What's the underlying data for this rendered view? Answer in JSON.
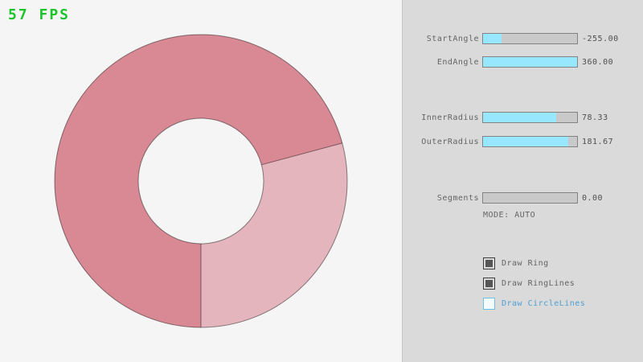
{
  "fps_label": "57 FPS",
  "colors": {
    "fps": "#1cc42c",
    "bg_left": "#f5f5f5",
    "bg_panel": "#dadada",
    "panel_border": "#c6c6c6",
    "ring_light": "#e4b5bc",
    "ring_dark": "#d98994",
    "ring_line": "rgba(0,0,0,0.45)",
    "slider_fill": "#97e8ff",
    "slider_track": "#c9c9c9",
    "slider_border": "#838383",
    "text": "#646464",
    "value_text": "#4f4f4f",
    "checkbox_checked_fill": "#565656",
    "checkbox_checked_border": "#3f3f3f",
    "checkbox_unchecked_border": "#6fc1e4",
    "checkbox_unchecked_bg": "#f4fbfe",
    "checkbox_unchecked_label": "#4f9fd4"
  },
  "panel": {
    "sliders": [
      {
        "label": "StartAngle",
        "value": "-255.00",
        "fill_pct": 20
      },
      {
        "label": "EndAngle",
        "value": "360.00",
        "fill_pct": 100
      },
      {
        "label": "InnerRadius",
        "value": "78.33",
        "fill_pct": 78
      },
      {
        "label": "OuterRadius",
        "value": "181.67",
        "fill_pct": 91
      },
      {
        "label": "Segments",
        "value": "0.00",
        "fill_pct": 0
      }
    ],
    "mode_text": "MODE: AUTO",
    "checkboxes": [
      {
        "label": "Draw Ring",
        "checked": true
      },
      {
        "label": "Draw RingLines",
        "checked": true
      },
      {
        "label": "Draw CircleLines",
        "checked": false
      }
    ]
  }
}
